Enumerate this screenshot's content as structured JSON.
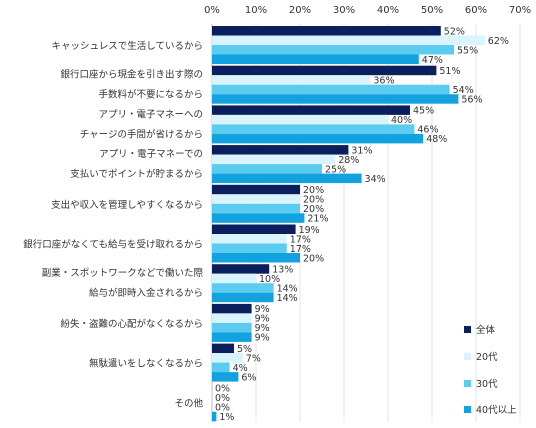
{
  "chart_data": {
    "type": "bar",
    "orientation": "horizontal",
    "title": "",
    "xlabel": "",
    "ylabel": "",
    "xlim": [
      0,
      70
    ],
    "ticks": [
      "0%",
      "10%",
      "20%",
      "30%",
      "40%",
      "50%",
      "60%",
      "70%"
    ],
    "tick_values": [
      0,
      10,
      20,
      30,
      40,
      50,
      60,
      70
    ],
    "grid": true,
    "legend_position": "bottom-right",
    "categories": [
      [
        "キャッシュレスで生活しているから"
      ],
      [
        "銀行口座から現金を引き出す際の",
        "手数料が不要になるから"
      ],
      [
        "アプリ・電子マネーへの",
        "チャージの手間が省けるから"
      ],
      [
        "アプリ・電子マネーでの",
        "支払いでポイントが貯まるから"
      ],
      [
        "支出や収入を管理しやすくなるから"
      ],
      [
        "銀行口座がなくても給与を受け取れるから"
      ],
      [
        "副業・スポットワークなどで働いた際",
        "給与が即時入金されるから"
      ],
      [
        "紛失・盗難の心配がなくなるから"
      ],
      [
        "無駄遣いをしなくなるから"
      ],
      [
        "その他"
      ]
    ],
    "series": [
      {
        "name": "全体",
        "color": "#0b1f5c",
        "values": [
          52,
          51,
          45,
          31,
          20,
          19,
          13,
          9,
          5,
          0
        ]
      },
      {
        "name": "20代",
        "color": "#d9f4fc",
        "values": [
          62,
          36,
          40,
          28,
          20,
          17,
          10,
          9,
          7,
          0
        ]
      },
      {
        "name": "30代",
        "color": "#5bcbf0",
        "values": [
          55,
          54,
          46,
          25,
          20,
          17,
          14,
          9,
          4,
          0
        ]
      },
      {
        "name": "40代以上",
        "color": "#12a2e0",
        "values": [
          47,
          56,
          48,
          34,
          21,
          20,
          14,
          9,
          6,
          1
        ]
      }
    ],
    "value_suffix": "%"
  }
}
